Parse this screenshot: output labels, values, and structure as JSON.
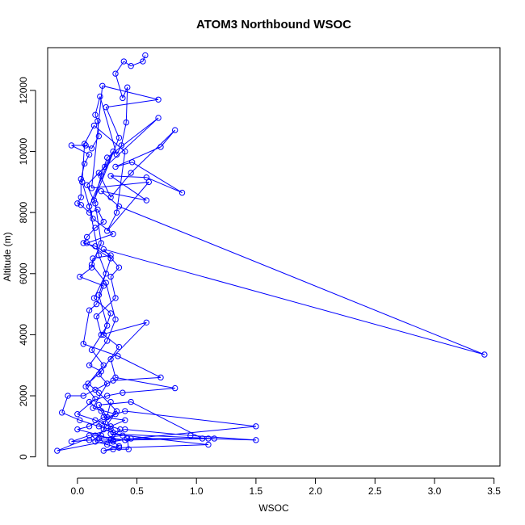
{
  "chart_data": {
    "type": "line",
    "title": "ATOM3 Northbound WSOC",
    "xlabel": "WSOC",
    "ylabel": "Altitude (m)",
    "xlim": [
      -0.25,
      3.55
    ],
    "ylim": [
      -300,
      13400
    ],
    "xticks": [
      0.0,
      0.5,
      1.0,
      1.5,
      2.0,
      2.5,
      3.0,
      3.5
    ],
    "xtick_labels": [
      "0.0",
      "0.5",
      "1.0",
      "1.5",
      "2.0",
      "2.5",
      "3.0",
      "3.5"
    ],
    "yticks": [
      0,
      2000,
      4000,
      6000,
      8000,
      10000,
      12000
    ],
    "ytick_labels": [
      "0",
      "2000",
      "4000",
      "6000",
      "8000",
      "10000",
      "12000"
    ],
    "grid": false,
    "legend": "none",
    "series_color": "#0000ff",
    "series": [
      {
        "points": [
          [
            0.57,
            13150
          ],
          [
            0.55,
            12950
          ],
          [
            0.45,
            12800
          ],
          [
            0.39,
            12950
          ],
          [
            0.32,
            12550
          ],
          [
            0.38,
            11750
          ],
          [
            0.42,
            12100
          ],
          [
            0.41,
            10950
          ],
          [
            0.37,
            10200
          ],
          [
            0.33,
            9900
          ],
          [
            0.19,
            11800
          ],
          [
            0.15,
            11200
          ],
          [
            0.17,
            11000
          ],
          [
            0.18,
            10500
          ],
          [
            0.12,
            10100
          ],
          [
            0.07,
            10200
          ],
          [
            -0.05,
            10200
          ],
          [
            0.1,
            9900
          ],
          [
            0.06,
            9600
          ],
          [
            0.03,
            9100
          ],
          [
            0.03,
            8500
          ],
          [
            0.0,
            8300
          ],
          [
            0.03,
            8250
          ],
          [
            0.1,
            8000
          ],
          [
            0.17,
            8100
          ],
          [
            0.22,
            7700
          ],
          [
            0.15,
            7500
          ],
          [
            0.08,
            7200
          ],
          [
            0.05,
            7000
          ],
          [
            0.15,
            6900
          ],
          [
            0.28,
            6600
          ],
          [
            0.13,
            6500
          ],
          [
            0.12,
            6200
          ],
          [
            0.02,
            5900
          ],
          [
            0.22,
            5600
          ],
          [
            0.16,
            5000
          ],
          [
            0.1,
            4800
          ],
          [
            0.05,
            3700
          ],
          [
            0.34,
            3300
          ],
          [
            0.7,
            2600
          ],
          [
            0.3,
            2500
          ],
          [
            0.15,
            2200
          ],
          [
            0.05,
            2000
          ],
          [
            -0.08,
            2000
          ],
          [
            -0.13,
            1450
          ],
          [
            0.02,
            1200
          ],
          [
            0.18,
            1000
          ],
          [
            0.28,
            900
          ],
          [
            0.1,
            700
          ],
          [
            -0.05,
            500
          ],
          [
            0.1,
            550
          ],
          [
            0.28,
            550
          ],
          [
            0.35,
            350
          ],
          [
            0.22,
            200
          ],
          [
            0.3,
            250
          ],
          [
            0.43,
            250
          ],
          [
            0.42,
            600
          ],
          [
            1.1,
            600
          ],
          [
            1.5,
            550
          ],
          [
            0.95,
            700
          ],
          [
            0.4,
            900
          ],
          [
            0.3,
            800
          ],
          [
            0.2,
            1500
          ],
          [
            0.1,
            1800
          ],
          [
            0.25,
            2000
          ],
          [
            0.38,
            2100
          ],
          [
            0.82,
            2250
          ],
          [
            0.32,
            2600
          ],
          [
            0.28,
            3200
          ],
          [
            0.58,
            4400
          ],
          [
            0.2,
            4000
          ],
          [
            0.16,
            4600
          ],
          [
            0.32,
            5200
          ],
          [
            0.28,
            5900
          ],
          [
            0.35,
            6200
          ],
          [
            0.22,
            6800
          ],
          [
            3.42,
            3350
          ],
          [
            0.35,
            8200
          ],
          [
            0.2,
            8700
          ],
          [
            0.58,
            8400
          ],
          [
            0.28,
            9200
          ],
          [
            0.58,
            9150
          ],
          [
            0.88,
            8650
          ],
          [
            0.46,
            9650
          ],
          [
            0.32,
            9500
          ],
          [
            0.7,
            10150
          ],
          [
            0.82,
            10700
          ],
          [
            0.45,
            9300
          ],
          [
            0.28,
            8500
          ],
          [
            0.18,
            9300
          ],
          [
            0.68,
            11100
          ],
          [
            0.25,
            9800
          ],
          [
            0.2,
            9200
          ],
          [
            0.14,
            8400
          ],
          [
            0.35,
            10450
          ],
          [
            0.24,
            11450
          ],
          [
            0.68,
            11700
          ],
          [
            0.21,
            12150
          ],
          [
            0.12,
            8800
          ],
          [
            0.6,
            9000
          ],
          [
            0.25,
            7400
          ],
          [
            0.33,
            8000
          ],
          [
            0.4,
            10000
          ],
          [
            0.14,
            10850
          ],
          [
            0.06,
            10250
          ],
          [
            0.04,
            9000
          ],
          [
            0.13,
            7800
          ],
          [
            0.3,
            7300
          ],
          [
            0.08,
            7000
          ],
          [
            0.28,
            6500
          ],
          [
            0.18,
            5300
          ],
          [
            0.25,
            4300
          ],
          [
            0.12,
            3500
          ],
          [
            0.22,
            3000
          ],
          [
            0.07,
            2300
          ],
          [
            0.15,
            1900
          ],
          [
            0.0,
            1400
          ],
          [
            0.15,
            1200
          ],
          [
            0.28,
            1000
          ],
          [
            0.4,
            1200
          ],
          [
            0.22,
            1300
          ],
          [
            0.1,
            1000
          ],
          [
            0.0,
            900
          ],
          [
            0.2,
            700
          ],
          [
            0.3,
            500
          ],
          [
            0.45,
            600
          ],
          [
            1.5,
            1000
          ],
          [
            0.4,
            1500
          ],
          [
            0.25,
            1300
          ],
          [
            0.18,
            1700
          ],
          [
            0.45,
            1800
          ],
          [
            1.05,
            600
          ],
          [
            0.4,
            550
          ],
          [
            0.15,
            700
          ],
          [
            -0.17,
            200
          ],
          [
            0.3,
            550
          ],
          [
            1.15,
            600
          ],
          [
            0.28,
            750
          ],
          [
            1.1,
            400
          ],
          [
            0.35,
            300
          ],
          [
            0.15,
            500
          ],
          [
            0.33,
            1500
          ],
          [
            0.18,
            2100
          ],
          [
            0.09,
            2400
          ],
          [
            0.2,
            2800
          ],
          [
            0.1,
            3000
          ],
          [
            0.25,
            3800
          ],
          [
            0.32,
            4500
          ],
          [
            0.24,
            5700
          ],
          [
            0.12,
            6300
          ],
          [
            0.2,
            7000
          ],
          [
            0.15,
            8300
          ],
          [
            0.08,
            8900
          ],
          [
            0.23,
            9500
          ],
          [
            0.3,
            10000
          ],
          [
            0.1,
            8200
          ],
          [
            0.18,
            6600
          ],
          [
            0.24,
            6000
          ],
          [
            0.14,
            5200
          ],
          [
            0.28,
            4700
          ],
          [
            0.22,
            4000
          ],
          [
            0.35,
            3600
          ],
          [
            0.18,
            2700
          ],
          [
            0.25,
            2400
          ],
          [
            0.13,
            1600
          ],
          [
            0.32,
            1400
          ],
          [
            0.2,
            1100
          ],
          [
            0.36,
            900
          ],
          [
            0.25,
            400
          ],
          [
            0.18,
            600
          ],
          [
            0.38,
            700
          ],
          [
            0.22,
            900
          ],
          [
            0.28,
            1800
          ]
        ]
      }
    ]
  }
}
